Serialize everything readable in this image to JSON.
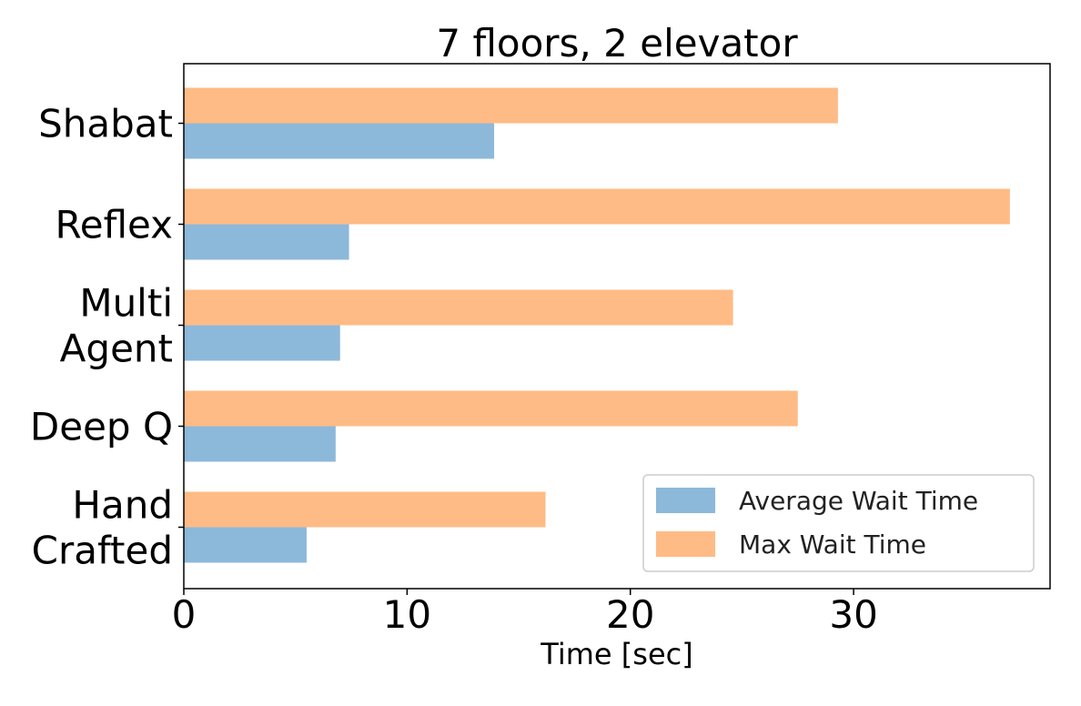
{
  "chart_data": {
    "type": "bar",
    "orientation": "horizontal",
    "title": "7 floors, 2 elevator",
    "xlabel": "Time [sec]",
    "ylabel": "",
    "xlim": [
      0,
      38.8
    ],
    "xticks": [
      0,
      10,
      20,
      30
    ],
    "categories": [
      [
        "Shabat"
      ],
      [
        "Reflex"
      ],
      [
        "Multi",
        "Agent"
      ],
      [
        "Deep Q"
      ],
      [
        "Hand",
        "Crafted"
      ]
    ],
    "series": [
      {
        "name": "Average Wait Time",
        "color": "#8cb8da",
        "values": [
          13.9,
          7.4,
          7.0,
          6.8,
          5.5
        ]
      },
      {
        "name": "Max Wait Time",
        "color": "#ffbb85",
        "values": [
          29.3,
          37.0,
          24.6,
          27.5,
          16.2
        ]
      }
    ],
    "legend": {
      "position": "lower-right"
    },
    "grid": false
  }
}
